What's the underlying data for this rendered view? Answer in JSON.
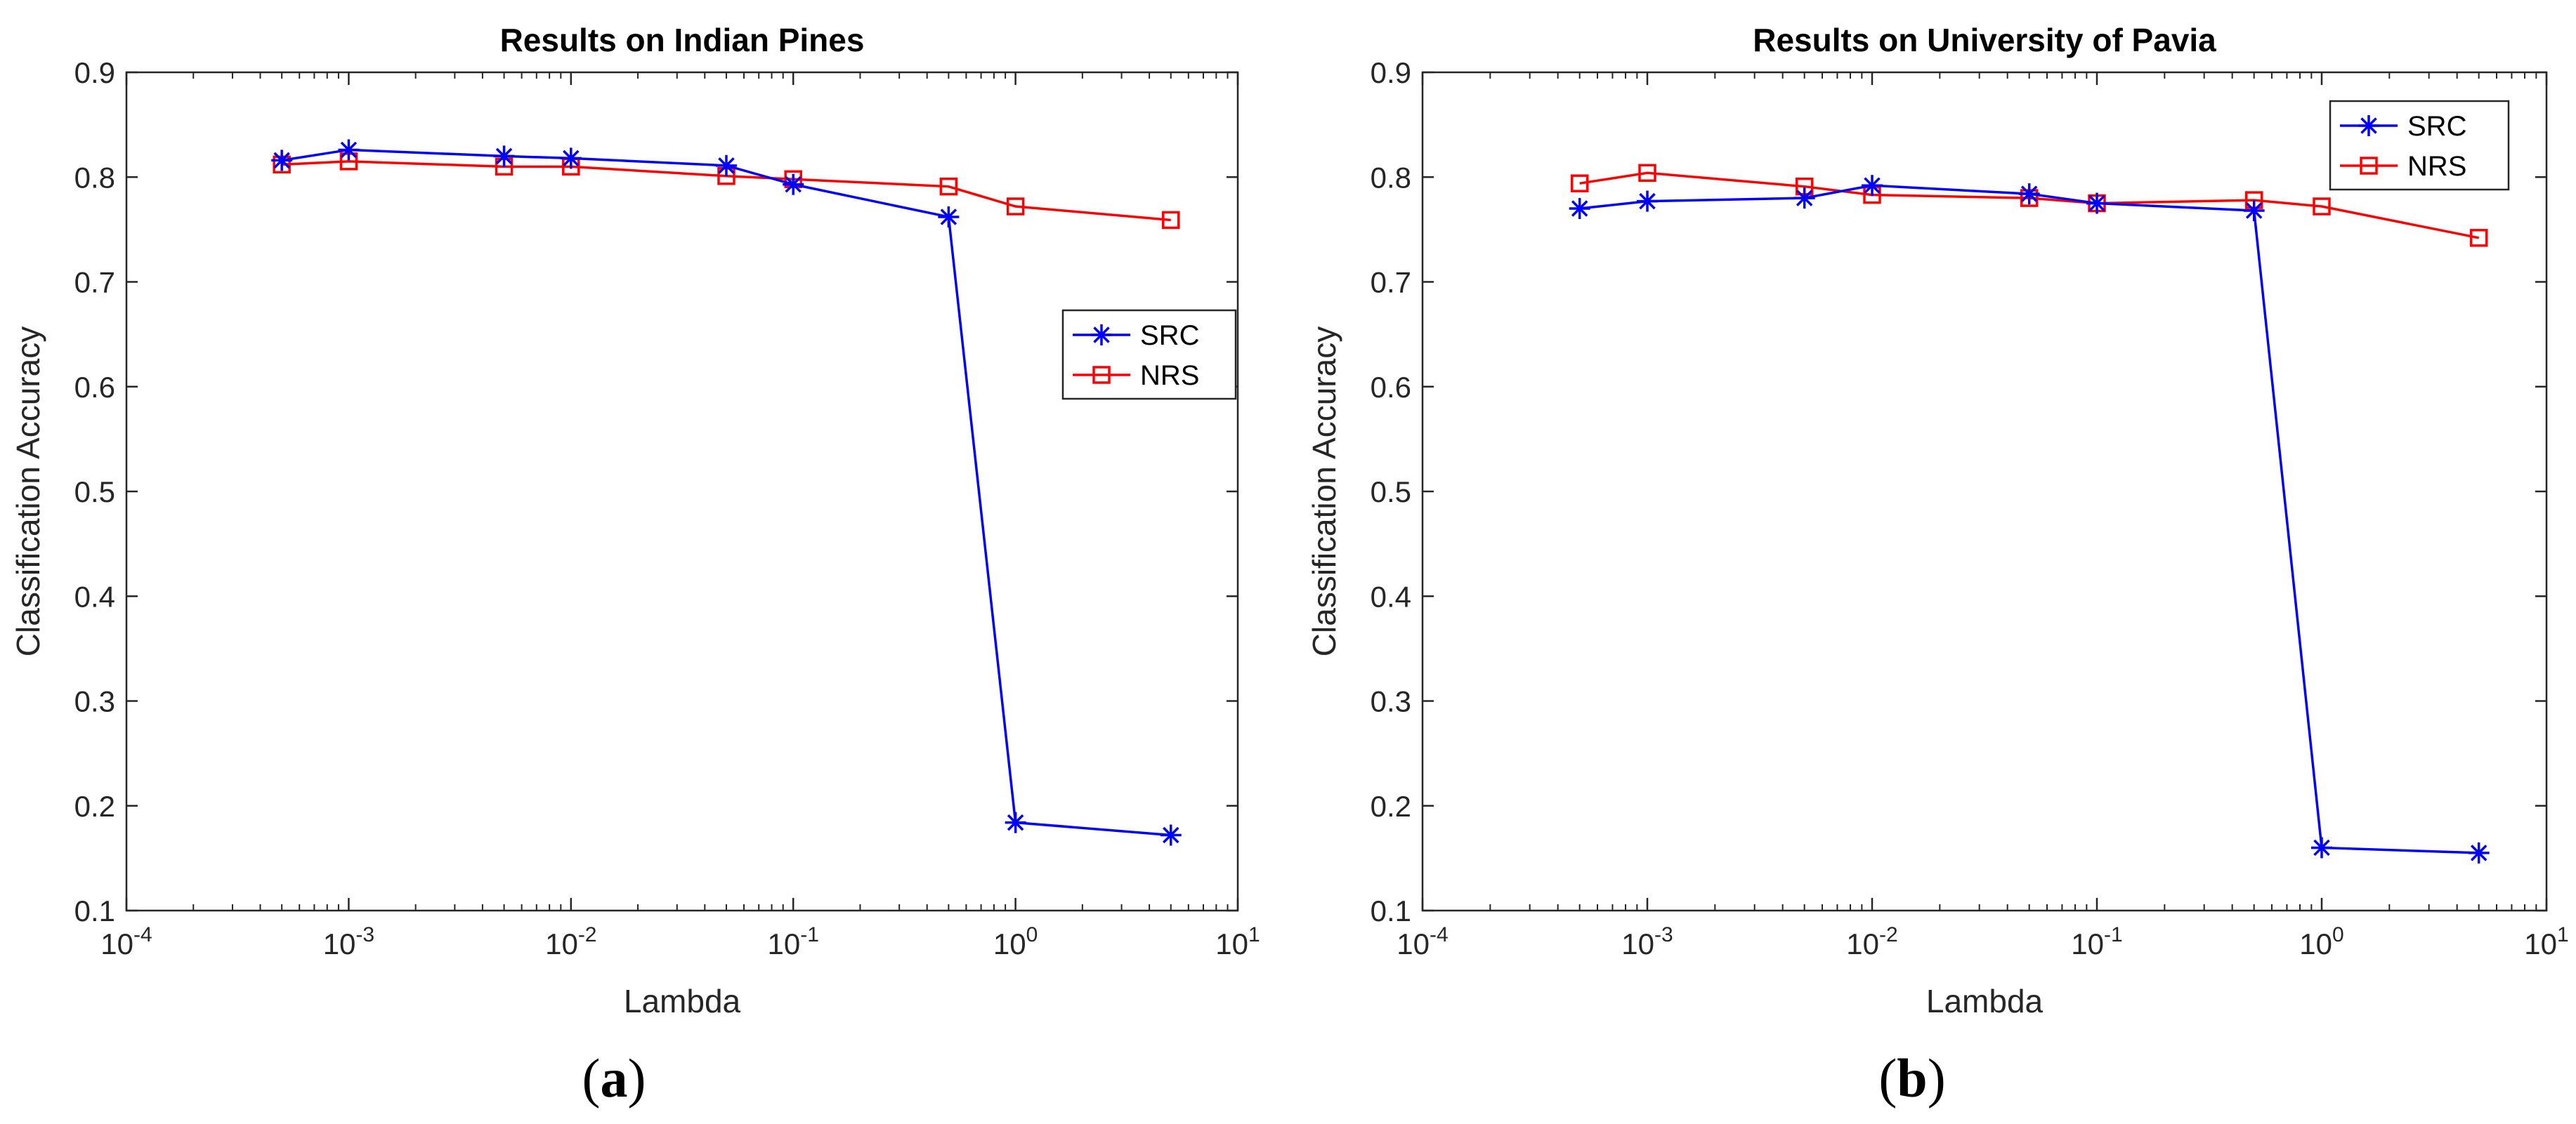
{
  "chart_data": [
    {
      "type": "line",
      "title": "Results on Indian Pines",
      "xlabel": "Lambda",
      "ylabel": "Classification Accuracy",
      "xscale": "log",
      "xlim": [
        0.0001,
        10
      ],
      "ylim": [
        0.1,
        0.9
      ],
      "x_ticks": [
        {
          "base": "10",
          "exp": "-4",
          "value": 0.0001
        },
        {
          "base": "10",
          "exp": "-3",
          "value": 0.001
        },
        {
          "base": "10",
          "exp": "-2",
          "value": 0.01
        },
        {
          "base": "10",
          "exp": "-1",
          "value": 0.1
        },
        {
          "base": "10",
          "exp": "0",
          "value": 1
        },
        {
          "base": "10",
          "exp": "1",
          "value": 10
        }
      ],
      "y_ticks": [
        "0.1",
        "0.2",
        "0.3",
        "0.4",
        "0.5",
        "0.6",
        "0.7",
        "0.8",
        "0.9"
      ],
      "x": [
        0.0005,
        0.001,
        0.005,
        0.01,
        0.05,
        0.1,
        0.5,
        1,
        5
      ],
      "series": [
        {
          "name": "SRC",
          "marker": "asterisk",
          "color": "#0000ff",
          "values": [
            0.816,
            0.826,
            0.82,
            0.818,
            0.811,
            0.793,
            0.762,
            0.184,
            0.172
          ]
        },
        {
          "name": "NRS",
          "marker": "square",
          "color": "#ff0000",
          "values": [
            0.812,
            0.815,
            0.81,
            0.81,
            0.801,
            0.798,
            0.791,
            0.772,
            0.759
          ]
        }
      ],
      "legend_position": "right-middle",
      "grid": false,
      "caption_letter": "a"
    },
    {
      "type": "line",
      "title": "Results on University of Pavia",
      "xlabel": "Lambda",
      "ylabel": "Classification Accuracy",
      "xscale": "log",
      "xlim": [
        0.0001,
        10
      ],
      "ylim": [
        0.1,
        0.9
      ],
      "x_ticks": [
        {
          "base": "10",
          "exp": "-4",
          "value": 0.0001
        },
        {
          "base": "10",
          "exp": "-3",
          "value": 0.001
        },
        {
          "base": "10",
          "exp": "-2",
          "value": 0.01
        },
        {
          "base": "10",
          "exp": "-1",
          "value": 0.1
        },
        {
          "base": "10",
          "exp": "0",
          "value": 1
        },
        {
          "base": "10",
          "exp": "1",
          "value": 10
        }
      ],
      "y_ticks": [
        "0.1",
        "0.2",
        "0.3",
        "0.4",
        "0.5",
        "0.6",
        "0.7",
        "0.8",
        "0.9"
      ],
      "x": [
        0.0005,
        0.001,
        0.005,
        0.01,
        0.05,
        0.1,
        0.5,
        1,
        5
      ],
      "series": [
        {
          "name": "SRC",
          "marker": "asterisk",
          "color": "#0000ff",
          "values": [
            0.77,
            0.777,
            0.78,
            0.792,
            0.784,
            0.775,
            0.768,
            0.16,
            0.155
          ]
        },
        {
          "name": "NRS",
          "marker": "square",
          "color": "#ff0000",
          "values": [
            0.794,
            0.804,
            0.791,
            0.783,
            0.78,
            0.775,
            0.778,
            0.772,
            0.742
          ]
        }
      ],
      "legend_position": "top-right",
      "grid": false,
      "caption_letter": "b"
    }
  ]
}
